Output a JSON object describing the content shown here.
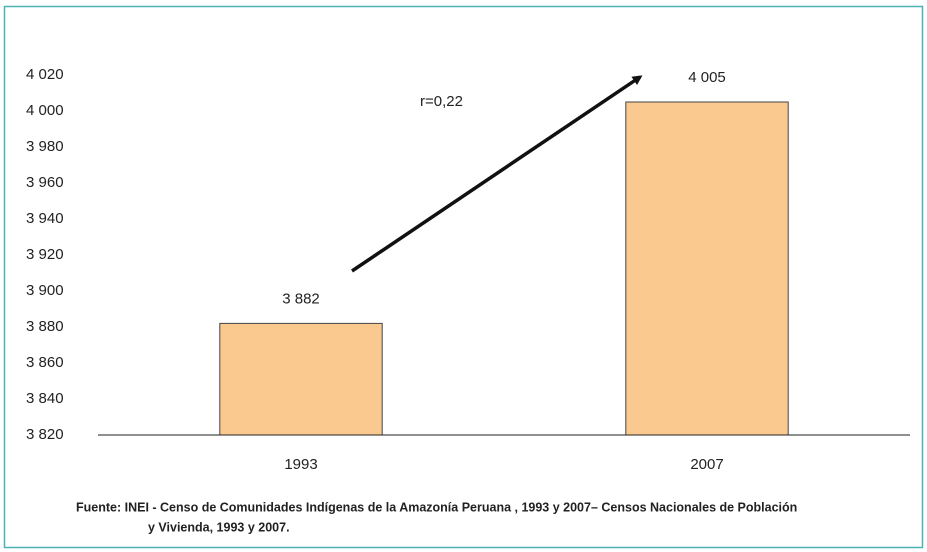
{
  "chart_data": {
    "type": "bar",
    "categories": [
      "1993",
      "2007"
    ],
    "values": [
      3882,
      4005
    ],
    "value_labels": [
      "3 882",
      "4 005"
    ],
    "color": "#fac990",
    "ylim": [
      3820,
      4020
    ],
    "yticks": [
      {
        "value": 3820,
        "label": "3 820"
      },
      {
        "value": 3840,
        "label": "3 840"
      },
      {
        "value": 3860,
        "label": "3 860"
      },
      {
        "value": 3880,
        "label": "3 880"
      },
      {
        "value": 3900,
        "label": "3 900"
      },
      {
        "value": 3920,
        "label": "3 920"
      },
      {
        "value": 3940,
        "label": "3 940"
      },
      {
        "value": 3960,
        "label": "3 960"
      },
      {
        "value": 3980,
        "label": "3 980"
      },
      {
        "value": 4000,
        "label": "4 000"
      },
      {
        "value": 4020,
        "label": "4 020"
      }
    ],
    "annotation": "r=0,22",
    "source": [
      "Fuente: INEI - Censo de Comunidades Indígenas de la Amazonía Peruana , 1993 y 2007– Censos Nacionales  de Población",
      "y Vivienda, 1993 y 2007."
    ],
    "grid": false
  }
}
